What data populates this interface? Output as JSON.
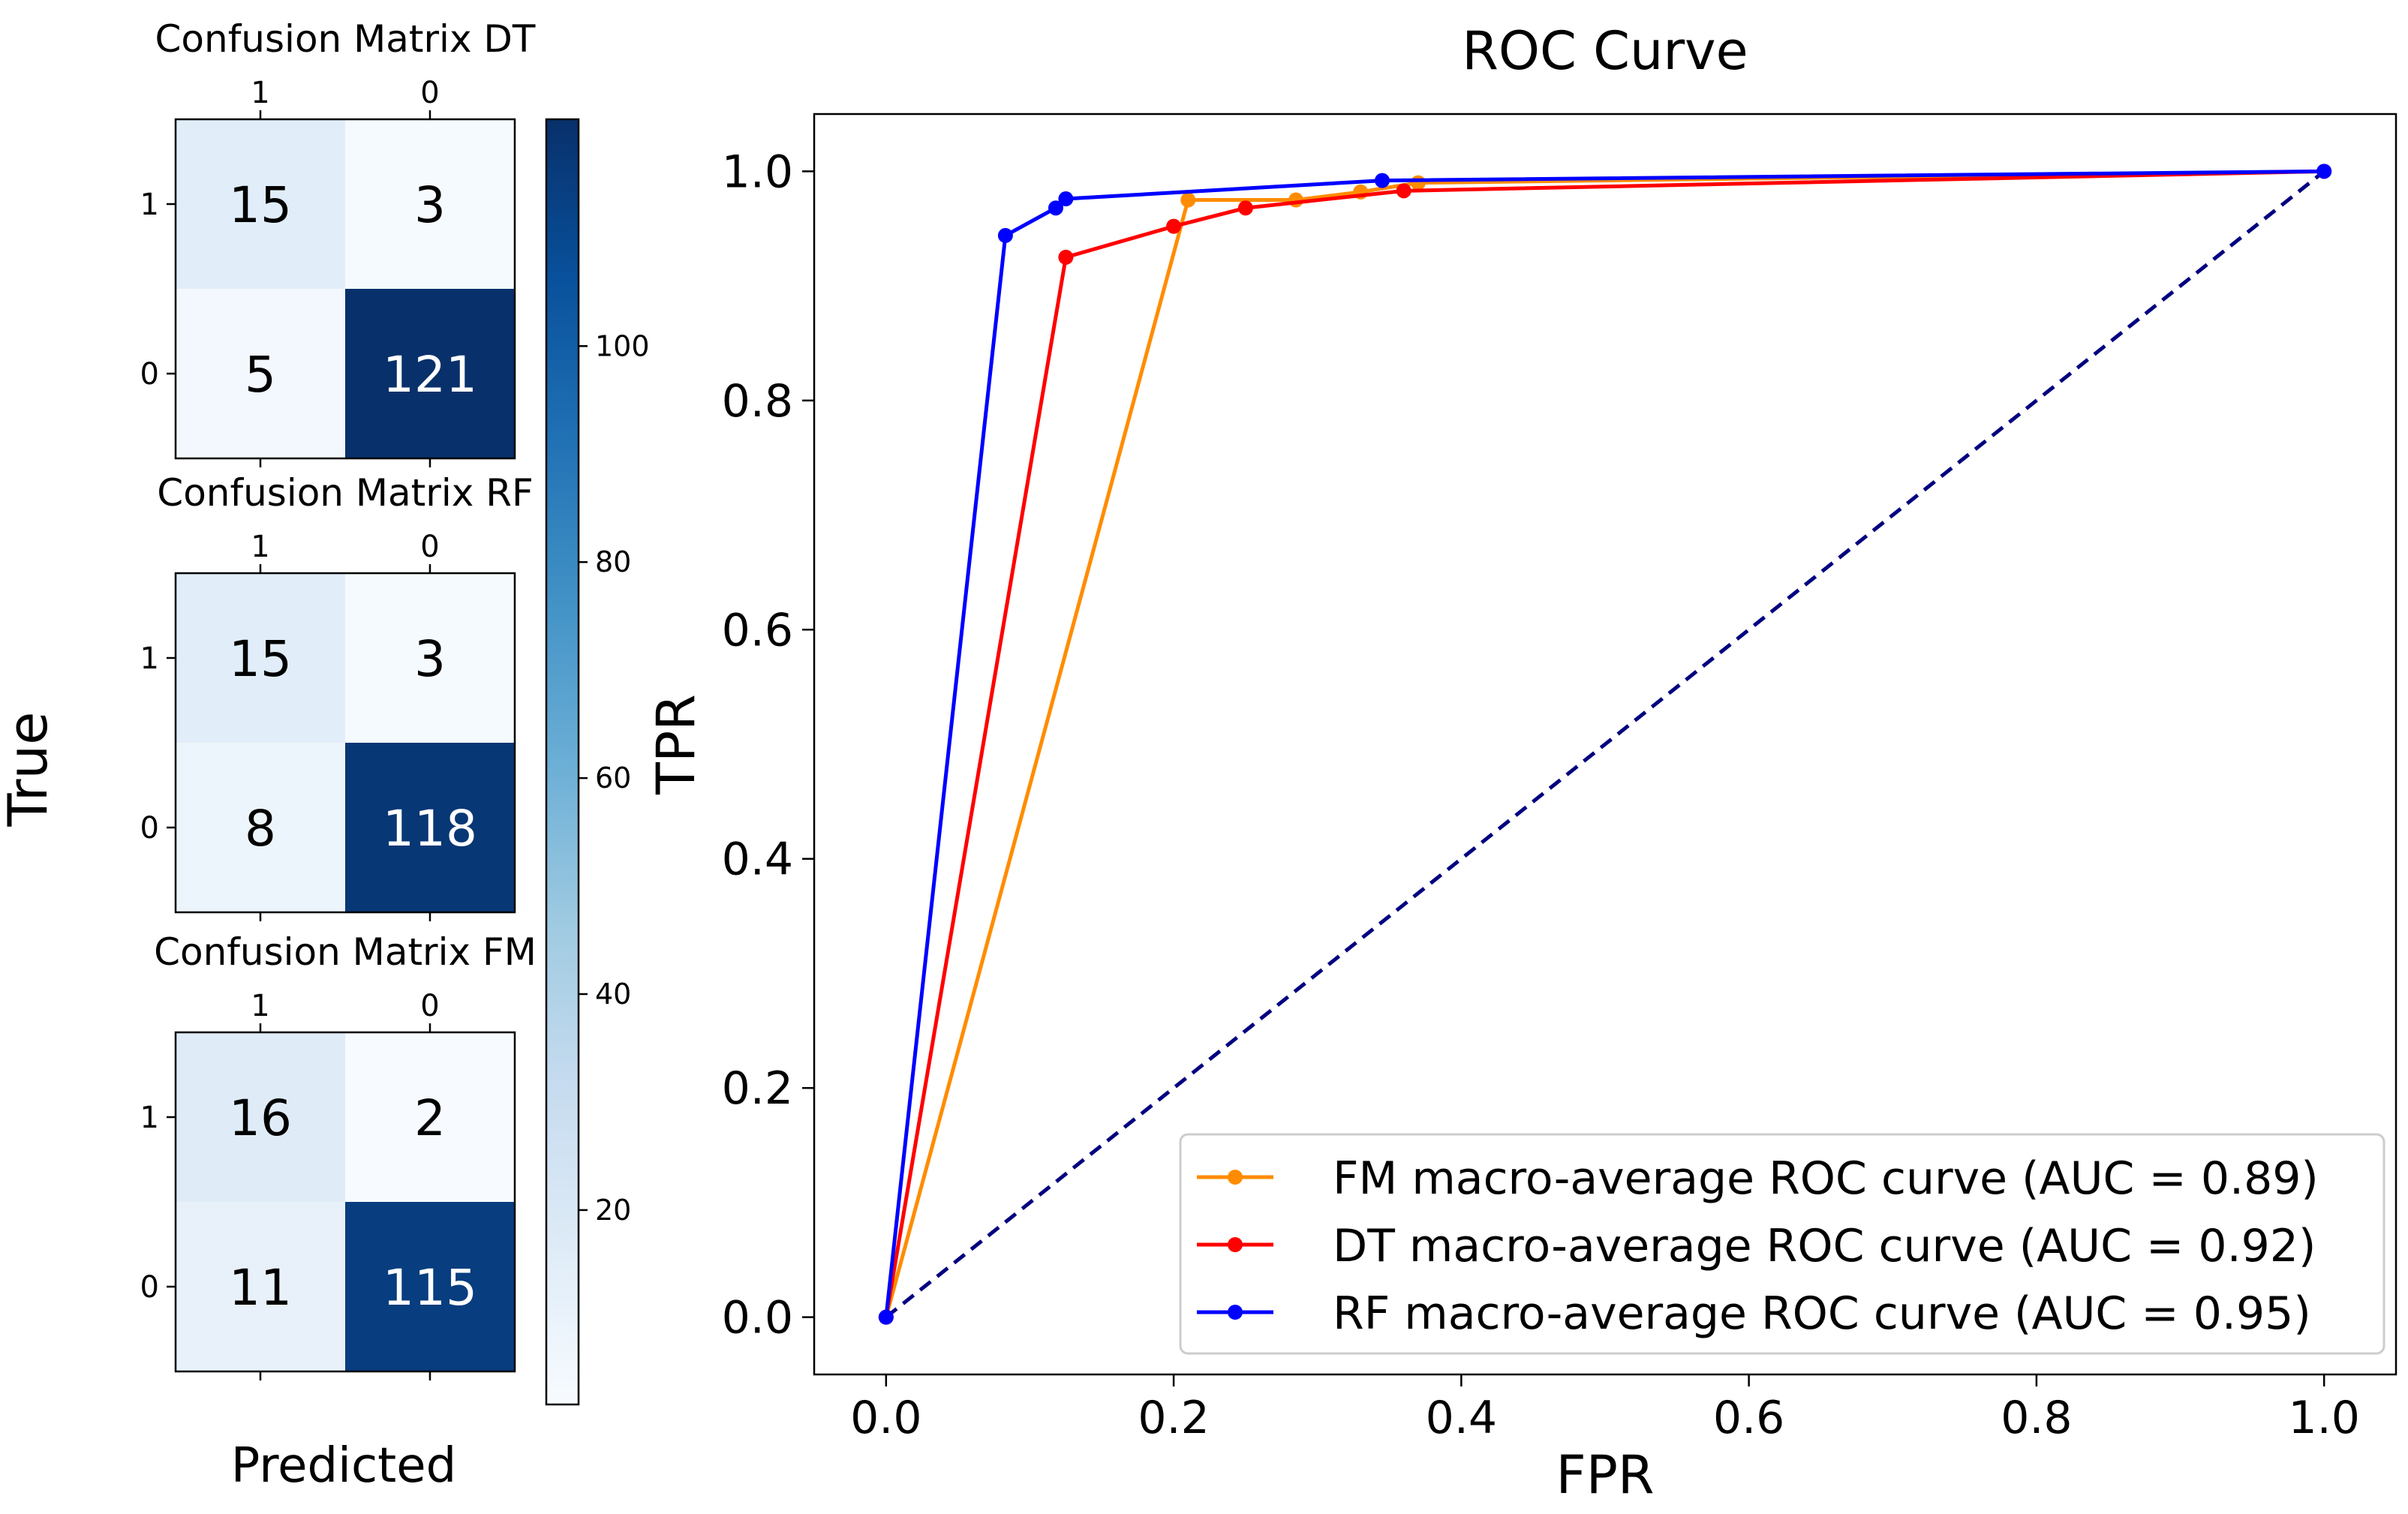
{
  "figure": {
    "shared_ylabel": "True",
    "shared_xlabel": "Predicted"
  },
  "colorbar": {
    "min": 2,
    "max": 121,
    "ticks": [
      20,
      40,
      60,
      80,
      100
    ],
    "colormap": "Blues"
  },
  "chart_data": [
    {
      "type": "heatmap",
      "title": "Confusion Matrix DT",
      "col_labels": [
        "1",
        "0"
      ],
      "row_labels": [
        "1",
        "0"
      ],
      "values": [
        [
          15,
          3
        ],
        [
          5,
          121
        ]
      ]
    },
    {
      "type": "heatmap",
      "title": "Confusion Matrix RF",
      "col_labels": [
        "1",
        "0"
      ],
      "row_labels": [
        "1",
        "0"
      ],
      "values": [
        [
          15,
          3
        ],
        [
          8,
          118
        ]
      ]
    },
    {
      "type": "heatmap",
      "title": "Confusion Matrix FM",
      "col_labels": [
        "1",
        "0"
      ],
      "row_labels": [
        "1",
        "0"
      ],
      "values": [
        [
          16,
          2
        ],
        [
          11,
          115
        ]
      ]
    },
    {
      "type": "line",
      "title": "ROC Curve",
      "xlabel": "FPR",
      "ylabel": "TPR",
      "xlim": [
        -0.05,
        1.05
      ],
      "ylim": [
        -0.05,
        1.05
      ],
      "xticks": [
        0.0,
        0.2,
        0.4,
        0.6,
        0.8,
        1.0
      ],
      "yticks": [
        0.0,
        0.2,
        0.4,
        0.6,
        0.8,
        1.0
      ],
      "legend_position": "lower-right",
      "series": [
        {
          "name": "FM macro-average ROC curve (AUC = 0.89)",
          "color": "#ff8c00",
          "x": [
            0.0,
            0.21,
            0.285,
            0.33,
            0.37,
            1.0
          ],
          "y": [
            0.0,
            0.975,
            0.975,
            0.982,
            0.99,
            1.0
          ]
        },
        {
          "name": "DT macro-average ROC curve (AUC = 0.92)",
          "color": "#ff0000",
          "x": [
            0.0,
            0.125,
            0.2,
            0.25,
            0.36,
            1.0
          ],
          "y": [
            0.0,
            0.925,
            0.952,
            0.968,
            0.983,
            1.0
          ]
        },
        {
          "name": "RF macro-average ROC curve (AUC = 0.95)",
          "color": "#0000ff",
          "x": [
            0.0,
            0.083,
            0.118,
            0.125,
            0.345,
            1.0
          ],
          "y": [
            0.0,
            0.944,
            0.968,
            0.976,
            0.992,
            1.0
          ]
        }
      ],
      "reference_line": {
        "x": [
          0.0,
          1.0
        ],
        "y": [
          0.0,
          1.0
        ],
        "color": "#000080",
        "style": "dashed"
      }
    }
  ]
}
